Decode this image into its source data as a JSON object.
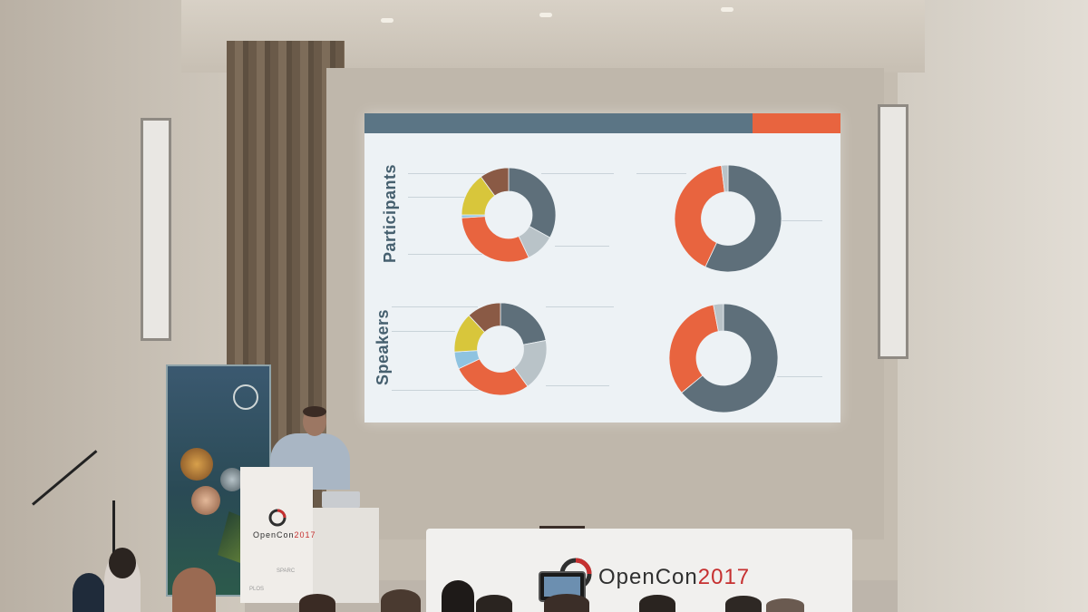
{
  "slide": {
    "participants_label": "Participants",
    "speakers_label": "Speakers"
  },
  "branding": {
    "event_name": "OpenCon",
    "event_year": "2017",
    "podium_name": "OpenCon",
    "podium_year": "2017",
    "sponsor_1": "SPARC",
    "sponsor_2": "PLOS"
  },
  "colors": {
    "slate": "#5e6f7a",
    "orange": "#e8643f",
    "yellow": "#d8c63b",
    "brown": "#8a5a45",
    "light_gray": "#b9c3c8",
    "sky": "#8fc3e0"
  },
  "chart_data": [
    {
      "type": "pie",
      "donut": true,
      "segments": [
        {
          "color": "#5e6f7a",
          "value": 33
        },
        {
          "color": "#b9c3c8",
          "value": 10
        },
        {
          "color": "#e8643f",
          "value": 31
        },
        {
          "color": "#8fc3e0",
          "value": 1
        },
        {
          "color": "#d8c63b",
          "value": 15
        },
        {
          "color": "#8a5a45",
          "value": 10
        }
      ]
    },
    {
      "type": "pie",
      "donut": true,
      "segments": [
        {
          "color": "#5e6f7a",
          "value": 57
        },
        {
          "color": "#e8643f",
          "value": 41
        },
        {
          "color": "#b9c3c8",
          "value": 2
        }
      ]
    },
    {
      "type": "pie",
      "donut": true,
      "segments": [
        {
          "color": "#5e6f7a",
          "value": 22
        },
        {
          "color": "#b9c3c8",
          "value": 18
        },
        {
          "color": "#e8643f",
          "value": 28
        },
        {
          "color": "#8fc3e0",
          "value": 6
        },
        {
          "color": "#d8c63b",
          "value": 14
        },
        {
          "color": "#8a5a45",
          "value": 12
        }
      ]
    },
    {
      "type": "pie",
      "donut": true,
      "segments": [
        {
          "color": "#5e6f7a",
          "value": 64
        },
        {
          "color": "#e8643f",
          "value": 33
        },
        {
          "color": "#b9c3c8",
          "value": 3
        }
      ]
    }
  ]
}
